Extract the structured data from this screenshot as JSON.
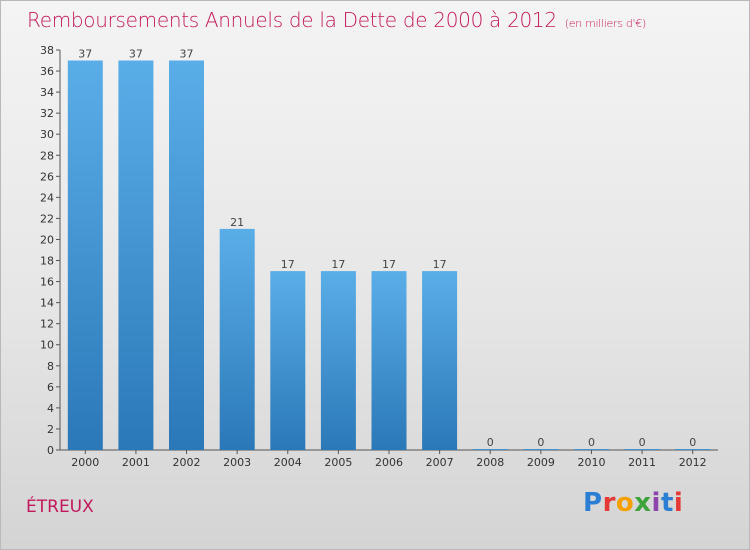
{
  "title": "Remboursements Annuels de la Dette de 2000 à 2012",
  "subtitle": "(en milliers d'€)",
  "commune": "ÉTREUX",
  "logo": [
    "P",
    "r",
    "o",
    "x",
    "i",
    "t",
    "i"
  ],
  "colors": {
    "bar_top": "#5aaee8",
    "bar_bottom": "#2b78b8",
    "title": "#c2185b"
  },
  "chart_data": {
    "type": "bar",
    "categories": [
      "2000",
      "2001",
      "2002",
      "2003",
      "2004",
      "2005",
      "2006",
      "2007",
      "2008",
      "2009",
      "2010",
      "2011",
      "2012"
    ],
    "values": [
      37,
      37,
      37,
      21,
      17,
      17,
      17,
      17,
      0,
      0,
      0,
      0,
      0
    ],
    "ylim": [
      0,
      38
    ],
    "yticks": [
      0,
      2,
      4,
      6,
      8,
      10,
      12,
      14,
      16,
      18,
      20,
      22,
      24,
      26,
      28,
      30,
      32,
      34,
      36,
      38
    ],
    "title": "Remboursements Annuels de la Dette de 2000 à 2012",
    "subtitle": "(en milliers d'€)",
    "xlabel": "",
    "ylabel": "",
    "grid": false,
    "legend": "none"
  }
}
